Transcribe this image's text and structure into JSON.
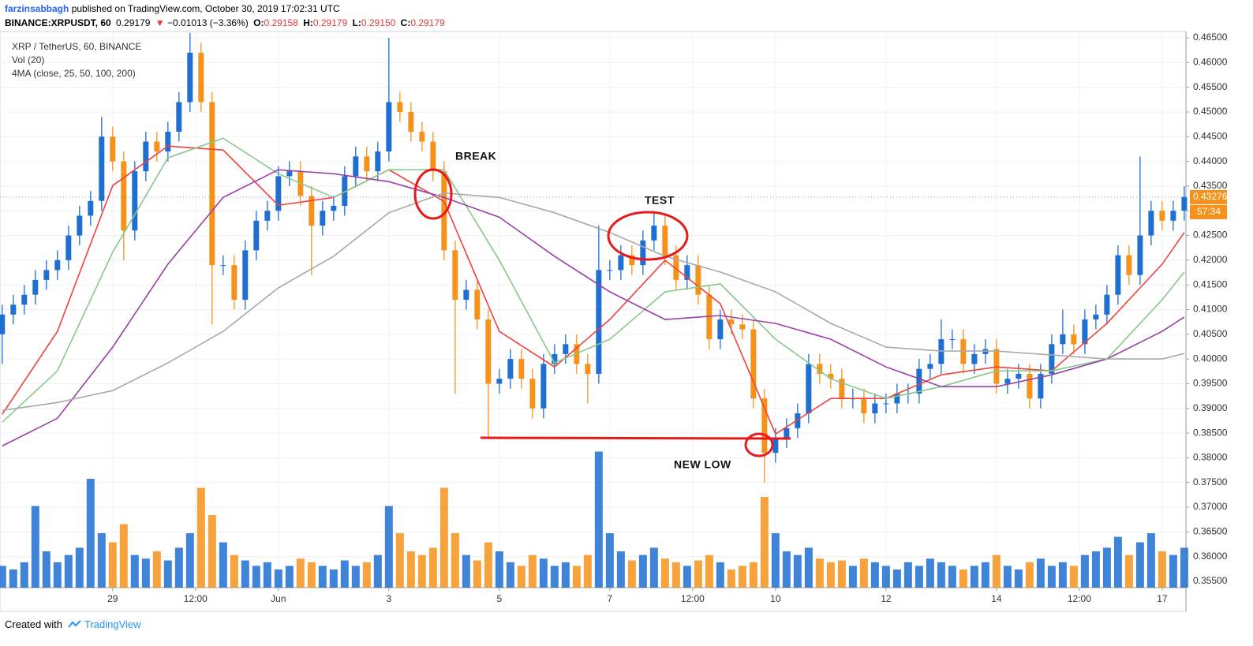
{
  "header": {
    "user": "farzinsabbagh",
    "published": "published on TradingView.com, October 30, 2019 17:02:31 UTC",
    "symbol": "BINANCE:XRPUSDT, 60",
    "price": "0.29179",
    "arrow": "▼",
    "change": "−0.01013 (−3.36%)",
    "o_label": "O:",
    "o": "0.29158",
    "h_label": "H:",
    "h": "0.29179",
    "l_label": "L:",
    "l": "0.29150",
    "c_label": "C:",
    "c": "0.29179"
  },
  "chart_data": {
    "type": "candlestick",
    "title": "XRP / TetherUS, 60, BINANCE",
    "indicators": [
      "Vol (20)",
      "4MA (close, 25, 50, 100, 200)"
    ],
    "up_color": "#1f6fd1",
    "down_color": "#f5921b",
    "grid": true,
    "xlim": [
      -1.04,
      20.43
    ],
    "xticks": [
      {
        "value": 1,
        "label": "29"
      },
      {
        "value": 2.5,
        "label": "12:00"
      },
      {
        "value": 4,
        "label": "Jun"
      },
      {
        "value": 6,
        "label": "3"
      },
      {
        "value": 8,
        "label": "5"
      },
      {
        "value": 10,
        "label": "7"
      },
      {
        "value": 11.5,
        "label": "12:00"
      },
      {
        "value": 13,
        "label": "10"
      },
      {
        "value": 15,
        "label": "12"
      },
      {
        "value": 17,
        "label": "14"
      },
      {
        "value": 18.5,
        "label": "12:00"
      },
      {
        "value": 20,
        "label": "17"
      }
    ],
    "ylim": [
      0.35372,
      0.46628
    ],
    "yticks": [
      {
        "value": 0.355,
        "label": "0.35500"
      },
      {
        "value": 0.36,
        "label": "0.36000"
      },
      {
        "value": 0.365,
        "label": "0.36500"
      },
      {
        "value": 0.37,
        "label": "0.37000"
      },
      {
        "value": 0.375,
        "label": "0.37500"
      },
      {
        "value": 0.38,
        "label": "0.38000"
      },
      {
        "value": 0.385,
        "label": "0.38500"
      },
      {
        "value": 0.39,
        "label": "0.39000"
      },
      {
        "value": 0.395,
        "label": "0.39500"
      },
      {
        "value": 0.4,
        "label": "0.40000"
      },
      {
        "value": 0.405,
        "label": "0.40500"
      },
      {
        "value": 0.41,
        "label": "0.41000"
      },
      {
        "value": 0.415,
        "label": "0.41500"
      },
      {
        "value": 0.42,
        "label": "0.42000"
      },
      {
        "value": 0.425,
        "label": "0.42500"
      },
      {
        "value": 0.43,
        "label": "0.43000"
      },
      {
        "value": 0.435,
        "label": "0.43500"
      },
      {
        "value": 0.44,
        "label": "0.44000"
      },
      {
        "value": 0.445,
        "label": "0.44500"
      },
      {
        "value": 0.45,
        "label": "0.45000"
      },
      {
        "value": 0.455,
        "label": "0.45500"
      },
      {
        "value": 0.46,
        "label": "0.46000"
      },
      {
        "value": 0.465,
        "label": "0.46500"
      }
    ],
    "x": [
      -1.0,
      -0.8,
      -0.6,
      -0.4,
      -0.2,
      0.0,
      0.2,
      0.4,
      0.6,
      0.8,
      1.0,
      1.2,
      1.4,
      1.6,
      1.8,
      2.0,
      2.2,
      2.4,
      2.6,
      2.8,
      3.0,
      3.2,
      3.4,
      3.6,
      3.8,
      4.0,
      4.2,
      4.4,
      4.6,
      4.8,
      5.0,
      5.2,
      5.4,
      5.6,
      5.8,
      6.0,
      6.2,
      6.4,
      6.6,
      6.8,
      7.0,
      7.2,
      7.4,
      7.6,
      7.8,
      8.0,
      8.2,
      8.4,
      8.6,
      8.8,
      9.0,
      9.2,
      9.4,
      9.6,
      9.8,
      10.0,
      10.2,
      10.4,
      10.6,
      10.8,
      11.0,
      11.2,
      11.4,
      11.6,
      11.8,
      12.0,
      12.2,
      12.4,
      12.6,
      12.8,
      13.0,
      13.2,
      13.4,
      13.6,
      13.8,
      14.0,
      14.2,
      14.4,
      14.6,
      14.8,
      15.0,
      15.2,
      15.4,
      15.6,
      15.8,
      16.0,
      16.2,
      16.4,
      16.6,
      16.8,
      17.0,
      17.2,
      17.4,
      17.6,
      17.8,
      18.0,
      18.2,
      18.4,
      18.6,
      18.8,
      19.0,
      19.2,
      19.4,
      19.6,
      19.8,
      20.0,
      20.2,
      20.4
    ],
    "open": [
      0.405,
      0.409,
      0.411,
      0.413,
      0.416,
      0.418,
      0.42,
      0.425,
      0.429,
      0.432,
      0.445,
      0.44,
      0.426,
      0.438,
      0.444,
      0.442,
      0.446,
      0.452,
      0.462,
      0.452,
      0.419,
      0.419,
      0.412,
      0.422,
      0.428,
      0.43,
      0.437,
      0.438,
      0.433,
      0.427,
      0.43,
      0.431,
      0.437,
      0.441,
      0.438,
      0.442,
      0.452,
      0.45,
      0.446,
      0.444,
      0.438,
      0.422,
      0.412,
      0.414,
      0.408,
      0.395,
      0.396,
      0.4,
      0.396,
      0.39,
      0.399,
      0.401,
      0.403,
      0.399,
      0.397,
      0.418,
      0.418,
      0.421,
      0.419,
      0.424,
      0.427,
      0.421,
      0.416,
      0.419,
      0.413,
      0.404,
      0.408,
      0.407,
      0.406,
      0.392,
      0.381,
      0.384,
      0.386,
      0.389,
      0.399,
      0.397,
      0.396,
      0.392,
      0.392,
      0.389,
      0.391,
      0.391,
      0.393,
      0.393,
      0.398,
      0.399,
      0.404,
      0.404,
      0.399,
      0.401,
      0.402,
      0.395,
      0.396,
      0.397,
      0.392,
      0.397,
      0.403,
      0.405,
      0.403,
      0.408,
      0.409,
      0.413,
      0.421,
      0.417,
      0.425,
      0.43,
      0.428,
      0.43
    ],
    "high": [
      0.411,
      0.413,
      0.415,
      0.418,
      0.42,
      0.422,
      0.427,
      0.431,
      0.434,
      0.449,
      0.447,
      0.442,
      0.44,
      0.446,
      0.446,
      0.448,
      0.454,
      0.466,
      0.464,
      0.454,
      0.421,
      0.421,
      0.424,
      0.43,
      0.432,
      0.439,
      0.44,
      0.44,
      0.435,
      0.432,
      0.433,
      0.439,
      0.443,
      0.443,
      0.444,
      0.465,
      0.454,
      0.452,
      0.448,
      0.446,
      0.44,
      0.424,
      0.416,
      0.416,
      0.41,
      0.398,
      0.402,
      0.402,
      0.398,
      0.401,
      0.403,
      0.405,
      0.405,
      0.401,
      0.427,
      0.42,
      0.423,
      0.423,
      0.426,
      0.43,
      0.429,
      0.423,
      0.421,
      0.421,
      0.415,
      0.41,
      0.41,
      0.409,
      0.408,
      0.394,
      0.386,
      0.388,
      0.391,
      0.401,
      0.401,
      0.399,
      0.398,
      0.394,
      0.394,
      0.393,
      0.393,
      0.395,
      0.395,
      0.4,
      0.401,
      0.408,
      0.406,
      0.406,
      0.403,
      0.404,
      0.404,
      0.398,
      0.399,
      0.399,
      0.399,
      0.405,
      0.41,
      0.407,
      0.41,
      0.411,
      0.415,
      0.423,
      0.423,
      0.441,
      0.432,
      0.432,
      0.432,
      0.435
    ],
    "low": [
      0.399,
      0.407,
      0.409,
      0.411,
      0.414,
      0.416,
      0.418,
      0.423,
      0.427,
      0.43,
      0.438,
      0.42,
      0.424,
      0.436,
      0.44,
      0.44,
      0.444,
      0.45,
      0.45,
      0.407,
      0.417,
      0.41,
      0.41,
      0.42,
      0.426,
      0.428,
      0.435,
      0.431,
      0.417,
      0.425,
      0.428,
      0.429,
      0.435,
      0.436,
      0.436,
      0.44,
      0.448,
      0.444,
      0.442,
      0.436,
      0.42,
      0.393,
      0.41,
      0.406,
      0.384,
      0.393,
      0.394,
      0.394,
      0.388,
      0.388,
      0.397,
      0.399,
      0.397,
      0.391,
      0.395,
      0.416,
      0.416,
      0.417,
      0.417,
      0.422,
      0.419,
      0.414,
      0.414,
      0.411,
      0.402,
      0.402,
      0.405,
      0.404,
      0.39,
      0.375,
      0.379,
      0.382,
      0.384,
      0.387,
      0.395,
      0.394,
      0.39,
      0.39,
      0.387,
      0.387,
      0.389,
      0.389,
      0.391,
      0.391,
      0.396,
      0.397,
      0.402,
      0.397,
      0.397,
      0.399,
      0.393,
      0.393,
      0.394,
      0.39,
      0.39,
      0.395,
      0.401,
      0.401,
      0.401,
      0.406,
      0.407,
      0.411,
      0.415,
      0.415,
      0.423,
      0.426,
      0.426,
      0.428
    ],
    "close": [
      0.409,
      0.411,
      0.413,
      0.416,
      0.418,
      0.42,
      0.425,
      0.429,
      0.432,
      0.445,
      0.44,
      0.426,
      0.438,
      0.444,
      0.442,
      0.446,
      0.452,
      0.462,
      0.452,
      0.419,
      0.419,
      0.412,
      0.422,
      0.428,
      0.43,
      0.437,
      0.438,
      0.433,
      0.427,
      0.43,
      0.431,
      0.437,
      0.441,
      0.438,
      0.442,
      0.452,
      0.45,
      0.446,
      0.444,
      0.438,
      0.422,
      0.412,
      0.414,
      0.408,
      0.395,
      0.396,
      0.4,
      0.396,
      0.39,
      0.399,
      0.401,
      0.403,
      0.399,
      0.397,
      0.418,
      0.418,
      0.421,
      0.419,
      0.424,
      0.427,
      0.421,
      0.416,
      0.419,
      0.413,
      0.404,
      0.408,
      0.407,
      0.406,
      0.392,
      0.381,
      0.384,
      0.386,
      0.389,
      0.399,
      0.397,
      0.396,
      0.392,
      0.392,
      0.389,
      0.391,
      0.391,
      0.393,
      0.393,
      0.398,
      0.399,
      0.404,
      0.404,
      0.399,
      0.401,
      0.402,
      0.395,
      0.396,
      0.397,
      0.392,
      0.397,
      0.403,
      0.405,
      0.403,
      0.408,
      0.409,
      0.413,
      0.421,
      0.417,
      0.425,
      0.43,
      0.428,
      0.43,
      0.4328
    ],
    "vlim": [
      0,
      100
    ],
    "volume": [
      12,
      10,
      14,
      45,
      20,
      14,
      18,
      22,
      60,
      30,
      25,
      35,
      18,
      16,
      20,
      15,
      22,
      30,
      55,
      40,
      25,
      18,
      15,
      12,
      14,
      10,
      12,
      16,
      14,
      12,
      10,
      15,
      12,
      14,
      18,
      45,
      30,
      20,
      18,
      22,
      55,
      30,
      18,
      15,
      25,
      20,
      14,
      12,
      18,
      16,
      12,
      14,
      12,
      18,
      75,
      30,
      20,
      15,
      18,
      22,
      16,
      14,
      12,
      15,
      18,
      14,
      10,
      12,
      14,
      50,
      30,
      20,
      18,
      22,
      16,
      14,
      15,
      12,
      16,
      14,
      12,
      10,
      14,
      12,
      16,
      14,
      12,
      10,
      12,
      14,
      18,
      12,
      10,
      14,
      16,
      12,
      14,
      12,
      18,
      20,
      22,
      28,
      18,
      25,
      30,
      20,
      18,
      22
    ],
    "ma_x": [
      -1,
      0,
      1,
      2,
      3,
      4,
      5,
      6,
      7,
      8,
      9,
      10,
      11,
      12,
      13,
      14,
      15,
      16,
      17,
      18,
      19,
      20,
      20.4
    ],
    "ma": [
      {
        "color": "#f0413d",
        "values": [
          0.3888,
          0.4056,
          0.4351,
          0.4431,
          0.4423,
          0.4311,
          0.4327,
          0.4383,
          0.4319,
          0.4056,
          0.3984,
          0.408,
          0.42,
          0.4112,
          0.3848,
          0.392,
          0.392,
          0.3968,
          0.3984,
          0.3976,
          0.4072,
          0.4192,
          0.4256
        ]
      },
      {
        "color": "#86c98a",
        "values": [
          0.3872,
          0.3976,
          0.4216,
          0.4407,
          0.4447,
          0.4375,
          0.4327,
          0.4383,
          0.4383,
          0.42,
          0.3992,
          0.404,
          0.4136,
          0.4152,
          0.404,
          0.396,
          0.392,
          0.3944,
          0.3976,
          0.3976,
          0.4,
          0.412,
          0.4176
        ]
      },
      {
        "color": "#9c3fa6",
        "values": [
          0.3824,
          0.388,
          0.4024,
          0.4192,
          0.4327,
          0.4383,
          0.4375,
          0.4359,
          0.4327,
          0.4287,
          0.4208,
          0.4136,
          0.408,
          0.4088,
          0.4072,
          0.404,
          0.3984,
          0.3944,
          0.3944,
          0.3968,
          0.4,
          0.4056,
          0.4085
        ]
      },
      {
        "color": "#a9a9a9",
        "values": [
          0.3896,
          0.3912,
          0.3936,
          0.3992,
          0.4056,
          0.4144,
          0.4208,
          0.4296,
          0.4336,
          0.4327,
          0.4296,
          0.4256,
          0.4208,
          0.4176,
          0.4136,
          0.4072,
          0.4024,
          0.4016,
          0.4016,
          0.4008,
          0.4,
          0.4,
          0.4011
        ]
      }
    ],
    "annotations": [
      "BREAK",
      "TEST",
      "NEW LOW"
    ],
    "last_price": 0.43276,
    "last_price_label": "0.43276",
    "countdown": "57:34"
  },
  "footer": {
    "created": "Created with",
    "brand": "TradingView"
  }
}
